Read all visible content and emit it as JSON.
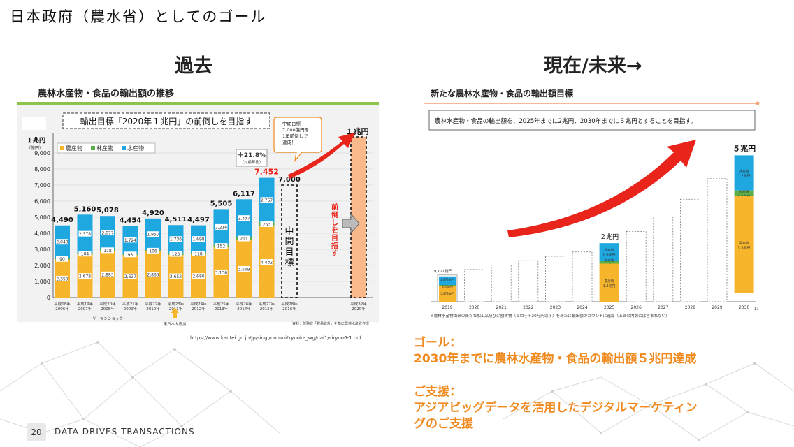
{
  "page": {
    "title": "日本政府（農水省）としてのゴール",
    "left_heading": "過去",
    "right_heading": "現在/未来→",
    "source_url": "https://www.kantei.go.jp/jp/singi/nousui/kyouka_wg/dai1/siryou6-1.pdf",
    "page_number": "20",
    "brand": "DATA DRIVES TRANSACTIONS"
  },
  "goal": {
    "goal_label": "ゴール：",
    "goal_text": "2030年までに農林水産物・食品の輸出額５兆円達成",
    "support_label": "ご支援：",
    "support_line1": "アジアビッグデータを活用したデジタルマーケティン",
    "support_line2": "グのご支援"
  },
  "colors": {
    "agri": "#f7b52c",
    "forest": "#5cae46",
    "fish": "#1fa7e0",
    "accent": "#f08a1f",
    "red": "#e8241b"
  },
  "chart_data": [
    {
      "type": "bar",
      "title": "農林水産物・食品の輸出額の推移",
      "banner": "輸出目標「2020年１兆円」の前倒しを目指す",
      "ylabel": "１兆円",
      "yunit": "（億円）",
      "ylim": [
        0,
        10000
      ],
      "yticks": [
        "0",
        "1,000",
        "2,000",
        "3,000",
        "4,000",
        "5,000",
        "6,000",
        "7,000",
        "8,000",
        "9,000"
      ],
      "legend": [
        "農産物",
        "林産物",
        "水産物"
      ],
      "categories": [
        {
          "label": "平成18年",
          "sub": "2006年"
        },
        {
          "label": "平成19年",
          "sub": "2007年"
        },
        {
          "label": "平成20年",
          "sub": "2008年"
        },
        {
          "label": "平成21年",
          "sub": "2009年"
        },
        {
          "label": "平成22年",
          "sub": "2010年"
        },
        {
          "label": "平成23年",
          "sub": "2011年"
        },
        {
          "label": "平成24年",
          "sub": "2012年"
        },
        {
          "label": "平成25年",
          "sub": "2013年"
        },
        {
          "label": "平成26年",
          "sub": "2014年"
        },
        {
          "label": "平成27年",
          "sub": "2015年"
        }
      ],
      "totals": [
        "4,490",
        "5,160",
        "5,078",
        "4,454",
        "4,920",
        "4,511",
        "4,497",
        "5,505",
        "6,117",
        "7,452"
      ],
      "series": [
        {
          "name": "農産物",
          "values": [
            2359,
            2678,
            2883,
            2637,
            2865,
            2652,
            2680,
            3136,
            3569,
            4432
          ],
          "labels": [
            "2,359",
            "2,678",
            "2,883",
            "2,637",
            "2,865",
            "2,652",
            "2,680",
            "3,136",
            "3,569",
            "4,432"
          ]
        },
        {
          "name": "林産物",
          "values": [
            90,
            104,
            118,
            93,
            106,
            123,
            118,
            152,
            211,
            263
          ],
          "labels": [
            "90",
            "104",
            "118",
            "93",
            "106",
            "123",
            "118",
            "152",
            "211",
            "263"
          ]
        },
        {
          "name": "水産物",
          "values": [
            2040,
            2378,
            2077,
            1724,
            1950,
            1736,
            1698,
            2216,
            2337,
            2757
          ],
          "labels": [
            "2,040",
            "2,378",
            "2,077",
            "1,724",
            "1,950",
            "1,736",
            "1,698",
            "2,216",
            "2,337",
            "2,757"
          ]
        }
      ],
      "target_2016": {
        "label": "平成28年",
        "sub": "2016年",
        "value": 7000,
        "text": "7,000",
        "inner": "中間目標"
      },
      "target_2020": {
        "label": "平成32年",
        "sub": "2020年",
        "value": 10000,
        "text": "１兆円",
        "side": "前倒しを目指す"
      },
      "growth": {
        "text": "＋21.8%",
        "sub": "（対前年比）"
      },
      "callout": [
        "中間目標",
        "7,000億円を",
        "1年前倒しで",
        "達成！"
      ],
      "annotations": {
        "lehman": "リーマンショック",
        "quake": "東日本大震災",
        "source": "資料：財務省「貿易統計」を基に農林水産省作成"
      }
    },
    {
      "type": "bar",
      "title": "新たな農林水産物・食品の輸出額目標",
      "banner": "農林水産物・食品の輸出額を、2025年までに2兆円、2030年までに５兆円とすることを目指す。",
      "categories": [
        "2019",
        "2020",
        "2021",
        "2022",
        "2023",
        "2024",
        "2025",
        "2026",
        "2027",
        "2028",
        "2029",
        "2030"
      ],
      "values": [
        9121,
        11000,
        12500,
        14000,
        15500,
        17000,
        20000,
        24000,
        29000,
        35000,
        42000,
        50000
      ],
      "ylim": [
        0,
        52000
      ],
      "first_label": "9,121億円",
      "first_segments": [
        {
          "name": "水産物",
          "text": "2,873億円"
        },
        {
          "name": "林産物",
          "text": "370億円"
        },
        {
          "name": "農産物",
          "text": "5,878億円"
        }
      ],
      "label_2025": "２兆円",
      "segments_2025": [
        {
          "name": "水産物",
          "text": "0.6兆円",
          "value": 6000
        },
        {
          "name": "林産物",
          "text": "0.1兆円",
          "value": 1000
        },
        {
          "name": "農産物",
          "text": "1.3兆円",
          "value": 13000
        }
      ],
      "label_2030": "５兆円",
      "segments_2030": [
        {
          "name": "水産物",
          "text": "1.2兆円",
          "value": 12000
        },
        {
          "name": "林産物",
          "text": "0.2兆円",
          "value": 2000
        },
        {
          "name": "農産物",
          "text": "3.3兆円",
          "value": 33000
        }
      ],
      "footnote": "※農林水産物由来の新たな加工品及び少額貨物（１ロット20万円以下）を新たに輸出額のカウントに追加（上図の内訳には含まれない）",
      "page_mark": "11"
    }
  ]
}
